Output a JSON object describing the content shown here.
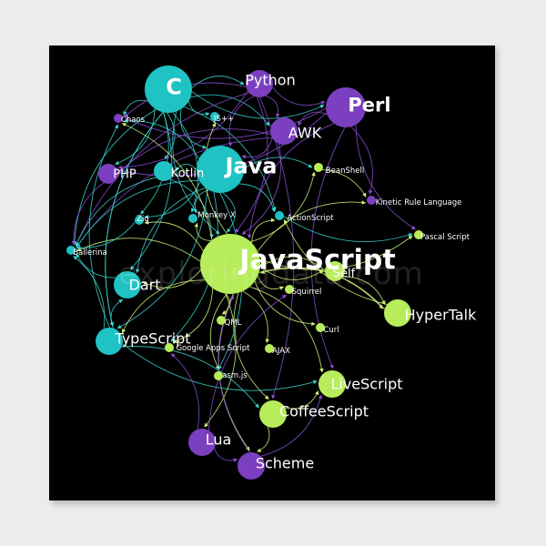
{
  "colors": {
    "background": "#000000",
    "page": "#ececec",
    "teal": "#1fc3c3",
    "purple": "#7b3fbf",
    "lime": "#b7ec5a",
    "edge_teal": "#3ad6d0",
    "edge_purple": "#8a4fd6",
    "edge_lime": "#d2f57a"
  },
  "watermark": "exploringdata.com",
  "nodes": [
    {
      "id": "c",
      "label": "C",
      "color": "teal",
      "size": "xl"
    },
    {
      "id": "python",
      "label": "Python",
      "color": "purple",
      "size": "m"
    },
    {
      "id": "perl",
      "label": "Perl",
      "color": "purple",
      "size": "l"
    },
    {
      "id": "awk",
      "label": "AWK",
      "color": "purple",
      "size": "m"
    },
    {
      "id": "chaos",
      "label": "Chaos",
      "color": "purple",
      "size": "xs"
    },
    {
      "id": "jspp",
      "label": "JS++",
      "color": "teal",
      "size": "xs"
    },
    {
      "id": "php",
      "label": "PHP",
      "color": "purple",
      "size": "s"
    },
    {
      "id": "kotlin",
      "label": "Kotlin",
      "color": "teal",
      "size": "s"
    },
    {
      "id": "java",
      "label": "Java",
      "color": "teal",
      "size": "xl"
    },
    {
      "id": "beanshell",
      "label": "BeanShell",
      "color": "lime",
      "size": "xs"
    },
    {
      "id": "kinetic",
      "label": "Kinetic Rule Language",
      "color": "purple",
      "size": "xs"
    },
    {
      "id": "zig",
      "label": "Zig",
      "color": "teal",
      "size": "xs"
    },
    {
      "id": "monkeyx",
      "label": "Monkey X",
      "color": "teal",
      "size": "xs"
    },
    {
      "id": "actionscript",
      "label": "ActionScript",
      "color": "teal",
      "size": "xs"
    },
    {
      "id": "pascalscript",
      "label": "Pascal Script",
      "color": "lime",
      "size": "xs"
    },
    {
      "id": "ballerina",
      "label": "Ballerina",
      "color": "teal",
      "size": "xs"
    },
    {
      "id": "javascript",
      "label": "JavaScript",
      "color": "lime",
      "size": "xxl"
    },
    {
      "id": "self",
      "label": "Self",
      "color": "lime",
      "size": "s"
    },
    {
      "id": "dart",
      "label": "Dart",
      "color": "teal",
      "size": "m"
    },
    {
      "id": "squirrel",
      "label": "Squirrel",
      "color": "lime",
      "size": "xs"
    },
    {
      "id": "hypertalk",
      "label": "HyperTalk",
      "color": "lime",
      "size": "m"
    },
    {
      "id": "qml",
      "label": "QML",
      "color": "lime",
      "size": "xs"
    },
    {
      "id": "curl",
      "label": "Curl",
      "color": "lime",
      "size": "xs"
    },
    {
      "id": "typescript",
      "label": "TypeScript",
      "color": "teal",
      "size": "m"
    },
    {
      "id": "googleapps",
      "label": "Google Apps Script",
      "color": "lime",
      "size": "xs"
    },
    {
      "id": "ajax",
      "label": "AJAX",
      "color": "lime",
      "size": "xs"
    },
    {
      "id": "asmjs",
      "label": "asm.js",
      "color": "lime",
      "size": "xs"
    },
    {
      "id": "livescript",
      "label": "LiveScript",
      "color": "lime",
      "size": "m"
    },
    {
      "id": "coffeescript",
      "label": "CoffeeScript",
      "color": "lime",
      "size": "m"
    },
    {
      "id": "lua",
      "label": "Lua",
      "color": "purple",
      "size": "m"
    },
    {
      "id": "scheme",
      "label": "Scheme",
      "color": "purple",
      "size": "m"
    }
  ],
  "edges": [
    [
      "c",
      "python"
    ],
    [
      "c",
      "perl"
    ],
    [
      "c",
      "awk"
    ],
    [
      "c",
      "java"
    ],
    [
      "c",
      "php"
    ],
    [
      "c",
      "chaos"
    ],
    [
      "c",
      "kotlin"
    ],
    [
      "c",
      "jspp"
    ],
    [
      "c",
      "zig"
    ],
    [
      "c",
      "ballerina"
    ],
    [
      "c",
      "dart"
    ],
    [
      "c",
      "typescript"
    ],
    [
      "c",
      "monkeyx"
    ],
    [
      "c",
      "javascript"
    ],
    [
      "c",
      "actionscript"
    ],
    [
      "python",
      "perl"
    ],
    [
      "python",
      "awk"
    ],
    [
      "python",
      "java"
    ],
    [
      "python",
      "javascript"
    ],
    [
      "python",
      "chaos"
    ],
    [
      "python",
      "php"
    ],
    [
      "python",
      "ballerina"
    ],
    [
      "python",
      "coffeescript"
    ],
    [
      "perl",
      "awk"
    ],
    [
      "perl",
      "php"
    ],
    [
      "perl",
      "javascript"
    ],
    [
      "perl",
      "kinetic"
    ],
    [
      "perl",
      "pascalscript"
    ],
    [
      "perl",
      "chaos"
    ],
    [
      "perl",
      "livescript"
    ],
    [
      "awk",
      "javascript"
    ],
    [
      "awk",
      "php"
    ],
    [
      "awk",
      "java"
    ],
    [
      "awk",
      "ballerina"
    ],
    [
      "java",
      "javascript"
    ],
    [
      "java",
      "kotlin"
    ],
    [
      "java",
      "beanshell"
    ],
    [
      "java",
      "dart"
    ],
    [
      "java",
      "typescript"
    ],
    [
      "java",
      "ballerina"
    ],
    [
      "java",
      "zig"
    ],
    [
      "java",
      "chaos"
    ],
    [
      "java",
      "actionscript"
    ],
    [
      "java",
      "monkeyx"
    ],
    [
      "java",
      "googleapps"
    ],
    [
      "kotlin",
      "ballerina"
    ],
    [
      "kotlin",
      "javascript"
    ],
    [
      "javascript",
      "beanshell"
    ],
    [
      "javascript",
      "kinetic"
    ],
    [
      "javascript",
      "pascalscript"
    ],
    [
      "javascript",
      "actionscript"
    ],
    [
      "javascript",
      "self"
    ],
    [
      "javascript",
      "hypertalk"
    ],
    [
      "javascript",
      "squirrel"
    ],
    [
      "javascript",
      "qml"
    ],
    [
      "javascript",
      "curl"
    ],
    [
      "javascript",
      "ajax"
    ],
    [
      "javascript",
      "asmjs"
    ],
    [
      "javascript",
      "livescript"
    ],
    [
      "javascript",
      "coffeescript"
    ],
    [
      "javascript",
      "googleapps"
    ],
    [
      "javascript",
      "typescript"
    ],
    [
      "javascript",
      "dart"
    ],
    [
      "javascript",
      "ballerina"
    ],
    [
      "javascript",
      "jspp"
    ],
    [
      "javascript",
      "zig"
    ],
    [
      "javascript",
      "monkeyx"
    ],
    [
      "javascript",
      "chaos"
    ],
    [
      "javascript",
      "lua"
    ],
    [
      "javascript",
      "scheme"
    ],
    [
      "self",
      "hypertalk"
    ],
    [
      "self",
      "javascript"
    ],
    [
      "hypertalk",
      "actionscript"
    ],
    [
      "hypertalk",
      "javascript"
    ],
    [
      "typescript",
      "coffeescript"
    ],
    [
      "typescript",
      "livescript"
    ],
    [
      "typescript",
      "dart"
    ],
    [
      "coffeescript",
      "livescript"
    ],
    [
      "coffeescript",
      "scheme"
    ],
    [
      "lua",
      "scheme"
    ],
    [
      "lua",
      "squirrel"
    ],
    [
      "lua",
      "googleapps"
    ],
    [
      "scheme",
      "javascript"
    ],
    [
      "scheme",
      "livescript"
    ],
    [
      "dart",
      "ballerina"
    ],
    [
      "php",
      "ballerina"
    ],
    [
      "zig",
      "ballerina"
    ],
    [
      "typescript",
      "ballerina"
    ],
    [
      "typescript",
      "chaos"
    ],
    [
      "actionscript",
      "pascalscript"
    ],
    [
      "beanshell",
      "kinetic"
    ],
    [
      "c",
      "typescript"
    ],
    [
      "java",
      "asmjs"
    ]
  ]
}
